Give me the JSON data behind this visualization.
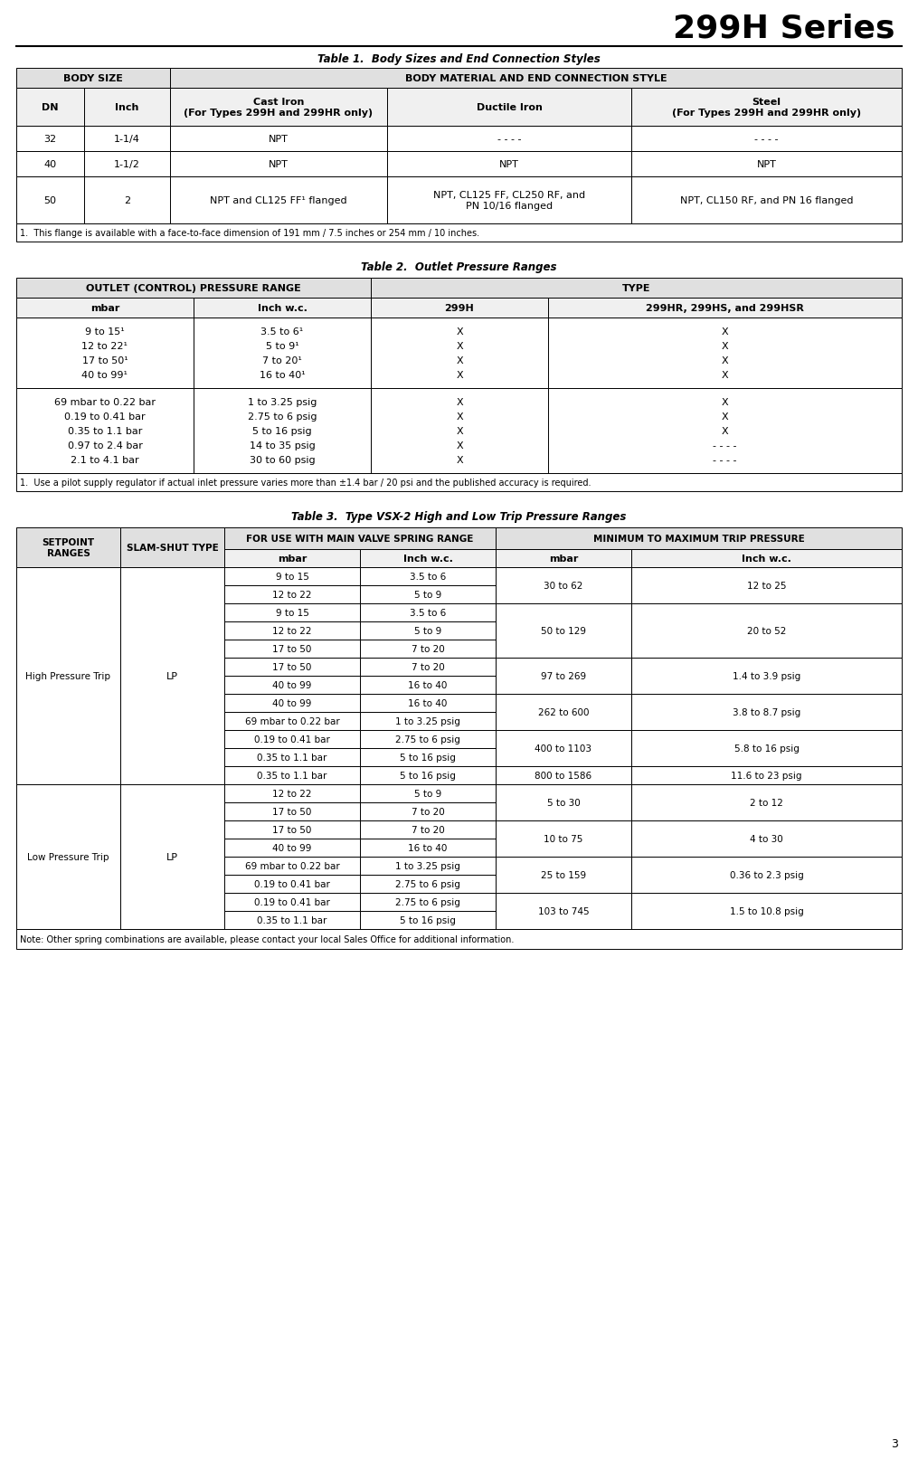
{
  "page_title": "299H Series",
  "page_number": "3",
  "table1_title": "Table 1.  Body Sizes and End Connection Styles",
  "table1_footnote": "1.  This flange is available with a face-to-face dimension of 191 mm / 7.5 inches or 254 mm / 10 inches.",
  "table1_data": [
    [
      "32",
      "1-1/4",
      "NPT",
      "- - - -",
      "- - - -"
    ],
    [
      "40",
      "1-1/2",
      "NPT",
      "NPT",
      "NPT"
    ],
    [
      "50",
      "2",
      "NPT and CL125 FF¹ flanged",
      "NPT, CL125 FF, CL250 RF, and\nPN 10/16 flanged",
      "NPT, CL150 RF, and PN 16 flanged"
    ]
  ],
  "table2_title": "Table 2.  Outlet Pressure Ranges",
  "table2_footnote": "1.  Use a pilot supply regulator if actual inlet pressure varies more than ±1.4 bar / 20 psi and the published accuracy is required.",
  "table2_data_block1": [
    [
      "9 to 15¹",
      "3.5 to 6¹",
      "X",
      "X"
    ],
    [
      "12 to 22¹",
      "5 to 9¹",
      "X",
      "X"
    ],
    [
      "17 to 50¹",
      "7 to 20¹",
      "X",
      "X"
    ],
    [
      "40 to 99¹",
      "16 to 40¹",
      "X",
      "X"
    ]
  ],
  "table2_data_block2": [
    [
      "69 mbar to 0.22 bar",
      "1 to 3.25 psig",
      "X",
      "X"
    ],
    [
      "0.19 to 0.41 bar",
      "2.75 to 6 psig",
      "X",
      "X"
    ],
    [
      "0.35 to 1.1 bar",
      "5 to 16 psig",
      "X",
      "X"
    ],
    [
      "0.97 to 2.4 bar",
      "14 to 35 psig",
      "X",
      "- - - -"
    ],
    [
      "2.1 to 4.1 bar",
      "30 to 60 psig",
      "X",
      "- - - -"
    ]
  ],
  "table3_title": "Table 3.  Type VSX-2 High and Low Trip Pressure Ranges",
  "table3_footnote": "Note: Other spring combinations are available, please contact your local Sales Office for additional information.",
  "high_press_rows": [
    [
      "9 to 15",
      "3.5 to 6"
    ],
    [
      "12 to 22",
      "5 to 9"
    ],
    [
      "9 to 15",
      "3.5 to 6"
    ],
    [
      "12 to 22",
      "5 to 9"
    ],
    [
      "17 to 50",
      "7 to 20"
    ],
    [
      "17 to 50",
      "7 to 20"
    ],
    [
      "40 to 99",
      "16 to 40"
    ],
    [
      "40 to 99",
      "16 to 40"
    ],
    [
      "69 mbar to 0.22 bar",
      "1 to 3.25 psig"
    ],
    [
      "0.19 to 0.41 bar",
      "2.75 to 6 psig"
    ],
    [
      "0.35 to 1.1 bar",
      "5 to 16 psig"
    ],
    [
      "0.35 to 1.1 bar",
      "5 to 16 psig"
    ]
  ],
  "high_trip_merges": [
    [
      0,
      2,
      "30 to 62",
      "12 to 25"
    ],
    [
      2,
      5,
      "50 to 129",
      "20 to 52"
    ],
    [
      5,
      7,
      "97 to 269",
      "1.4 to 3.9 psig"
    ],
    [
      7,
      9,
      "262 to 600",
      "3.8 to 8.7 psig"
    ],
    [
      9,
      11,
      "400 to 1103",
      "5.8 to 16 psig"
    ],
    [
      11,
      12,
      "800 to 1586",
      "11.6 to 23 psig"
    ]
  ],
  "low_press_rows": [
    [
      "12 to 22",
      "5 to 9"
    ],
    [
      "17 to 50",
      "7 to 20"
    ],
    [
      "17 to 50",
      "7 to 20"
    ],
    [
      "40 to 99",
      "16 to 40"
    ],
    [
      "69 mbar to 0.22 bar",
      "1 to 3.25 psig"
    ],
    [
      "0.19 to 0.41 bar",
      "2.75 to 6 psig"
    ],
    [
      "0.19 to 0.41 bar",
      "2.75 to 6 psig"
    ],
    [
      "0.35 to 1.1 bar",
      "5 to 16 psig"
    ]
  ],
  "low_trip_merges": [
    [
      0,
      2,
      "5 to 30",
      "2 to 12"
    ],
    [
      2,
      4,
      "10 to 75",
      "4 to 30"
    ],
    [
      4,
      6,
      "25 to 159",
      "0.36 to 2.3 psig"
    ],
    [
      6,
      8,
      "103 to 745",
      "1.5 to 10.8 psig"
    ]
  ]
}
